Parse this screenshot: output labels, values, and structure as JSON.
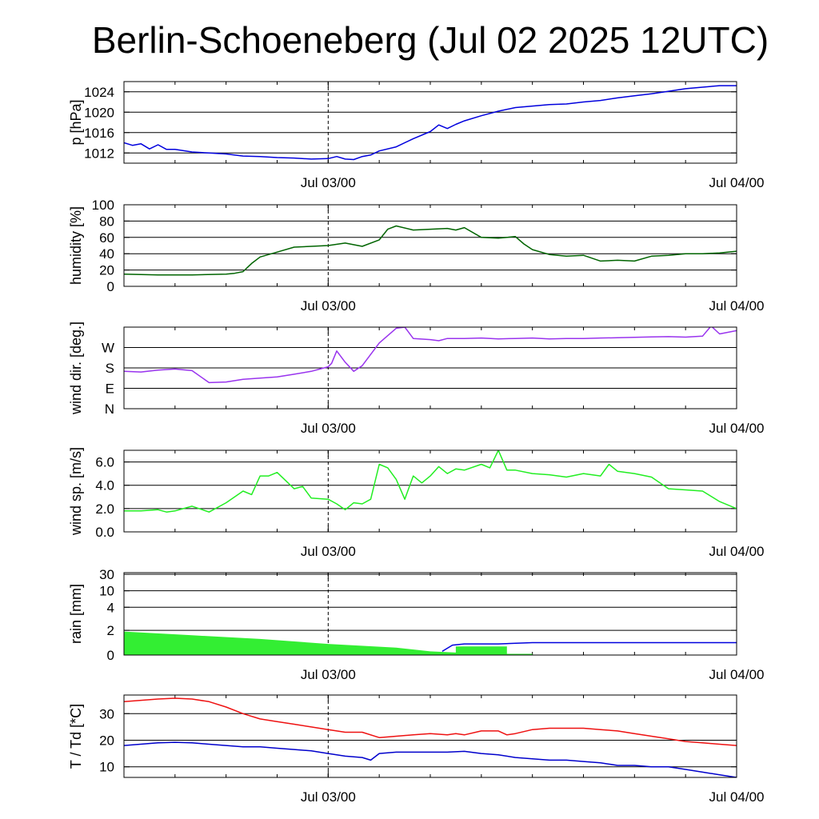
{
  "title": "Berlin-Schoeneberg (Jul 02 2025 12UTC)",
  "colors": {
    "pressure": "#0000dd",
    "humidity": "#006400",
    "wind_dir": "#9933ee",
    "wind_speed": "#22ee22",
    "rain_fill": "#33ee33",
    "rain_total": "#0000dd",
    "temperature": "#ee1111",
    "dewpoint": "#0000cc",
    "grid": "#000000",
    "background": "#ffffff"
  },
  "chart_data": [
    {
      "id": "pressure",
      "type": "line",
      "ylabel": "p [hPa]",
      "x_range_hours": [
        0,
        36
      ],
      "x_tick_labels": [
        "Jul 03/00",
        "Jul 04/00"
      ],
      "x_tick_hours": [
        12,
        36
      ],
      "marker_hour": 12,
      "ylim": [
        1010,
        1026
      ],
      "yticks": [
        1012,
        1016,
        1020,
        1024
      ],
      "grid_y": true,
      "series": [
        {
          "key": "pressure",
          "x": [
            0,
            0.5,
            1,
            1.5,
            2,
            2.5,
            3,
            4,
            5,
            6,
            7,
            8,
            9,
            10,
            11,
            12,
            12.5,
            13,
            13.5,
            14,
            14.5,
            15,
            16,
            17,
            18,
            18.5,
            19,
            19.5,
            20,
            21,
            22,
            23,
            24,
            25,
            26,
            27,
            28,
            29,
            30,
            31,
            32,
            33,
            34,
            35,
            36
          ],
          "values": [
            1014,
            1013.5,
            1013.8,
            1012.8,
            1013.6,
            1012.7,
            1012.7,
            1012.2,
            1012.0,
            1011.8,
            1011.4,
            1011.3,
            1011.1,
            1011.0,
            1010.8,
            1010.9,
            1011.3,
            1010.8,
            1010.7,
            1011.3,
            1011.6,
            1012.4,
            1013.2,
            1014.8,
            1016.2,
            1017.5,
            1016.8,
            1017.6,
            1018.3,
            1019.3,
            1020.2,
            1020.9,
            1021.2,
            1021.5,
            1021.6,
            1022.0,
            1022.3,
            1022.8,
            1023.2,
            1023.6,
            1024.1,
            1024.6,
            1024.9,
            1025.2,
            1025.2
          ]
        }
      ]
    },
    {
      "id": "humidity",
      "type": "line",
      "ylabel": "humidity [%]",
      "x_range_hours": [
        0,
        36
      ],
      "x_tick_labels": [
        "Jul 03/00",
        "Jul 04/00"
      ],
      "x_tick_hours": [
        12,
        36
      ],
      "marker_hour": 12,
      "ylim": [
        0,
        100
      ],
      "yticks": [
        0,
        20,
        40,
        60,
        80,
        100
      ],
      "grid_y": true,
      "series": [
        {
          "key": "humidity",
          "x": [
            0,
            2,
            4,
            6,
            6.5,
            7,
            7.5,
            8,
            9,
            10,
            11,
            12,
            13,
            14,
            15,
            15.5,
            16,
            17,
            18,
            19,
            19.5,
            20,
            21,
            22,
            23,
            23.5,
            24,
            25,
            26,
            27,
            28,
            29,
            30,
            31,
            32,
            33,
            34,
            35,
            36
          ],
          "values": [
            15,
            14,
            14,
            15,
            16,
            18,
            28,
            36,
            42,
            48,
            49,
            50,
            53,
            49,
            57,
            70,
            74,
            69,
            70,
            71,
            69,
            72,
            60,
            59,
            61,
            52,
            45,
            39,
            37,
            38,
            31,
            32,
            31,
            37,
            38,
            40,
            40,
            41,
            43
          ]
        }
      ]
    },
    {
      "id": "wind_direction",
      "type": "line",
      "ylabel": "wind dir. [deg.]",
      "x_range_hours": [
        0,
        36
      ],
      "x_tick_labels": [
        "Jul 03/00",
        "Jul 04/00"
      ],
      "x_tick_hours": [
        12,
        36
      ],
      "marker_hour": 12,
      "ylim": [
        0,
        360
      ],
      "ytick_labels": [
        "N",
        "E",
        "S",
        "W"
      ],
      "ytick_values": [
        0,
        90,
        180,
        270
      ],
      "grid_y": true,
      "series": [
        {
          "key": "wind_dir",
          "x": [
            0,
            1,
            2,
            3,
            4,
            5,
            6,
            7,
            8,
            9,
            10,
            11,
            12,
            12.2,
            12.5,
            13,
            13.5,
            14,
            15,
            16,
            16.5,
            17,
            18,
            18.5,
            19,
            20,
            21,
            22,
            23,
            24,
            25,
            26,
            27,
            28,
            29,
            30,
            31,
            32,
            33,
            34,
            34.5,
            35,
            36
          ],
          "values": [
            165,
            162,
            170,
            175,
            168,
            115,
            118,
            130,
            135,
            140,
            152,
            165,
            185,
            200,
            255,
            205,
            165,
            190,
            290,
            355,
            360,
            310,
            305,
            300,
            310,
            310,
            312,
            308,
            310,
            312,
            308,
            310,
            310,
            312,
            313,
            315,
            317,
            318,
            316,
            320,
            365,
            330,
            345
          ]
        }
      ]
    },
    {
      "id": "wind_speed",
      "type": "line",
      "ylabel": "wind sp. [m/s]",
      "x_range_hours": [
        0,
        36
      ],
      "x_tick_labels": [
        "Jul 03/00",
        "Jul 04/00"
      ],
      "x_tick_hours": [
        12,
        36
      ],
      "marker_hour": 12,
      "ylim": [
        0,
        7
      ],
      "yticks": [
        0.0,
        2.0,
        4.0,
        6.0
      ],
      "ytick_labels": [
        "0.0",
        "2.0",
        "4.0",
        "6.0"
      ],
      "grid_y": true,
      "series": [
        {
          "key": "wind_speed",
          "x": [
            0,
            1,
            2,
            2.5,
            3,
            4,
            5,
            6,
            7,
            7.5,
            8,
            8.5,
            9,
            10,
            10.5,
            11,
            12,
            12.5,
            13,
            13.5,
            14,
            14.5,
            15,
            15.5,
            16,
            16.5,
            17,
            17.5,
            18,
            18.5,
            19,
            19.5,
            20,
            21,
            21.5,
            22,
            22.5,
            23,
            24,
            25,
            26,
            27,
            28,
            28.5,
            29,
            30,
            31,
            32,
            33,
            34,
            35,
            36
          ],
          "values": [
            1.8,
            1.8,
            1.9,
            1.7,
            1.8,
            2.2,
            1.7,
            2.5,
            3.5,
            3.2,
            4.8,
            4.8,
            5.1,
            3.7,
            3.9,
            2.9,
            2.8,
            2.4,
            1.9,
            2.5,
            2.4,
            2.8,
            5.8,
            5.5,
            4.5,
            2.8,
            4.8,
            4.2,
            4.8,
            5.6,
            5.0,
            5.4,
            5.3,
            5.8,
            5.5,
            7.0,
            5.3,
            5.3,
            5.0,
            4.9,
            4.7,
            5.0,
            4.8,
            5.8,
            5.2,
            5.0,
            4.7,
            3.7,
            3.6,
            3.5,
            2.6,
            2.0
          ]
        }
      ]
    },
    {
      "id": "rain",
      "type": "area",
      "ylabel": "rain [mm]",
      "x_range_hours": [
        0,
        36
      ],
      "x_tick_labels": [
        "Jul 03/00",
        "Jul 04/00"
      ],
      "x_tick_hours": [
        12,
        36
      ],
      "marker_hour": 12,
      "scale": "nonlinear",
      "ytick_labels": [
        "0",
        "2",
        "4",
        "10",
        "30"
      ],
      "ytick_values": [
        0,
        2,
        4,
        10,
        30
      ],
      "grid_y": true,
      "series": [
        {
          "key": "rain_fill",
          "x": [
            0,
            4,
            8,
            12,
            16,
            18,
            19.5,
            19.5,
            22.5,
            22.5,
            24
          ],
          "values": [
            1.9,
            1.6,
            1.3,
            0.9,
            0.6,
            0.3,
            0.2,
            0.7,
            0.7,
            0.1,
            0.1
          ]
        },
        {
          "key": "rain_total",
          "x": [
            18.7,
            19.3,
            20,
            22,
            24,
            28,
            32,
            36
          ],
          "values": [
            0.3,
            0.8,
            0.9,
            0.9,
            1.0,
            1.0,
            1.0,
            1.0
          ]
        }
      ]
    },
    {
      "id": "temperature",
      "type": "line",
      "ylabel": "T / Td [*C]",
      "x_range_hours": [
        0,
        36
      ],
      "x_tick_labels": [
        "Jul 03/00",
        "Jul 04/00"
      ],
      "x_tick_hours": [
        12,
        36
      ],
      "marker_hour": 12,
      "ylim": [
        6,
        37
      ],
      "yticks": [
        10,
        20,
        30
      ],
      "grid_y": true,
      "series": [
        {
          "key": "temperature",
          "x": [
            0,
            2,
            3,
            4,
            5,
            6,
            7,
            8,
            9,
            10,
            11,
            12,
            12.5,
            13,
            14,
            15,
            16,
            17,
            18,
            19,
            19.5,
            20,
            21,
            22,
            22.5,
            23,
            24,
            25,
            26,
            27,
            28,
            29,
            30,
            31,
            32,
            33,
            34,
            35,
            36
          ],
          "values": [
            34.5,
            35.5,
            35.8,
            35.5,
            34.5,
            32.5,
            30.0,
            28.0,
            27.0,
            26.0,
            25.0,
            24.0,
            23.5,
            23.0,
            23.0,
            21.0,
            21.5,
            22.0,
            22.5,
            22.0,
            22.5,
            22.0,
            23.5,
            23.5,
            22.0,
            22.5,
            24.0,
            24.5,
            24.5,
            24.5,
            24.0,
            23.5,
            22.5,
            21.5,
            20.5,
            19.5,
            19.0,
            18.5,
            18.0
          ]
        },
        {
          "key": "dewpoint",
          "x": [
            0,
            2,
            3,
            4,
            5,
            6,
            7,
            8,
            9,
            10,
            11,
            12,
            13,
            14,
            14.5,
            15,
            16,
            17,
            18,
            19,
            20,
            21,
            22,
            23,
            24,
            25,
            26,
            27,
            28,
            29,
            30,
            31,
            32,
            33,
            34,
            35,
            36
          ],
          "values": [
            18.0,
            19.0,
            19.2,
            19.0,
            18.5,
            18.0,
            17.5,
            17.5,
            17.0,
            16.5,
            16.0,
            15.0,
            14.0,
            13.5,
            12.5,
            15.0,
            15.5,
            15.5,
            15.5,
            15.5,
            15.8,
            15.0,
            14.5,
            13.5,
            13.0,
            12.5,
            12.5,
            12.0,
            11.5,
            10.5,
            10.5,
            10.0,
            10.0,
            9.0,
            8.0,
            7.0,
            6.0
          ]
        }
      ]
    }
  ]
}
